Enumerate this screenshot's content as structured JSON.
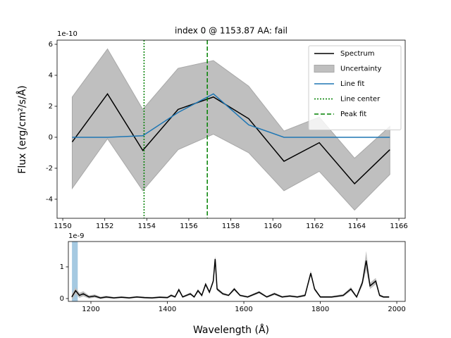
{
  "chart_data": [
    {
      "type": "line",
      "title": "index 0 @ 1153.87 AA: fail",
      "offset_label": "1e-10",
      "ylabel": "Flux (erg/cm²/s/Å)",
      "x": [
        1150.45,
        1152.13,
        1153.81,
        1155.49,
        1157.17,
        1158.85,
        1160.53,
        1162.21,
        1163.89,
        1165.57
      ],
      "series": [
        {
          "name": "Spectrum",
          "color": "#000000",
          "values": [
            -0.3,
            2.8,
            -0.85,
            1.8,
            2.6,
            1.2,
            -1.55,
            -0.35,
            -3.0,
            -0.8
          ]
        },
        {
          "name": "Uncertainty",
          "color": "#bfbfbf",
          "upper": [
            2.6,
            5.7,
            1.8,
            4.45,
            4.95,
            3.3,
            0.4,
            1.3,
            -1.35,
            0.7
          ],
          "lower": [
            -3.3,
            -0.1,
            -3.45,
            -0.8,
            0.2,
            -1.0,
            -3.45,
            -2.2,
            -4.7,
            -2.4
          ]
        },
        {
          "name": "Line fit",
          "color": "#1f77b4",
          "values": [
            0,
            0,
            0.1,
            1.6,
            2.8,
            0.8,
            0,
            0,
            0,
            0
          ]
        }
      ],
      "vlines": [
        {
          "name": "Line center",
          "x": 1153.87,
          "color": "#008000",
          "style": "dotted"
        },
        {
          "name": "Peak fit",
          "x": 1156.88,
          "color": "#008000",
          "style": "dashed"
        }
      ],
      "xlim": [
        1149.73,
        1166.3
      ],
      "ylim": [
        -5.23,
        6.27
      ],
      "xticks": [
        1150,
        1152,
        1154,
        1156,
        1158,
        1160,
        1162,
        1164,
        1166
      ],
      "yticks": [
        -4,
        -2,
        0,
        2,
        4,
        6
      ],
      "legend": "upper right"
    },
    {
      "type": "line",
      "offset_label": "1e-9",
      "xlabel": "Wavelength (Å)",
      "x": [
        1150,
        1160,
        1170,
        1180,
        1195,
        1210,
        1225,
        1240,
        1260,
        1280,
        1300,
        1320,
        1340,
        1360,
        1380,
        1400,
        1410,
        1420,
        1430,
        1440,
        1460,
        1470,
        1480,
        1490,
        1500,
        1510,
        1520,
        1525,
        1530,
        1545,
        1560,
        1575,
        1590,
        1610,
        1640,
        1660,
        1680,
        1700,
        1720,
        1740,
        1760,
        1775,
        1785,
        1800,
        1830,
        1860,
        1880,
        1895,
        1910,
        1920,
        1930,
        1945,
        1955,
        1965,
        1980
      ],
      "color": "#000000",
      "values": [
        0.05,
        0.25,
        0.1,
        0.15,
        0.05,
        0.08,
        0.02,
        0.05,
        0.02,
        0.04,
        0.02,
        0.05,
        0.03,
        0.02,
        0.04,
        0.03,
        0.1,
        0.05,
        0.28,
        0.05,
        0.15,
        0.05,
        0.25,
        0.1,
        0.45,
        0.2,
        0.55,
        1.25,
        0.3,
        0.15,
        0.1,
        0.3,
        0.1,
        0.05,
        0.2,
        0.05,
        0.15,
        0.05,
        0.08,
        0.05,
        0.1,
        0.8,
        0.3,
        0.05,
        0.05,
        0.1,
        0.3,
        0.05,
        0.5,
        1.2,
        0.4,
        0.55,
        0.1,
        0.05,
        0.05
      ],
      "err": [
        0.1,
        0.1,
        0.08,
        0.08,
        0.05,
        0.05,
        0.04,
        0.04,
        0.03,
        0.03,
        0.03,
        0.03,
        0.03,
        0.03,
        0.03,
        0.03,
        0.04,
        0.03,
        0.05,
        0.03,
        0.04,
        0.03,
        0.05,
        0.04,
        0.06,
        0.05,
        0.07,
        0.1,
        0.05,
        0.04,
        0.03,
        0.05,
        0.03,
        0.03,
        0.04,
        0.03,
        0.04,
        0.03,
        0.03,
        0.03,
        0.04,
        0.08,
        0.05,
        0.03,
        0.03,
        0.04,
        0.06,
        0.03,
        0.1,
        0.3,
        0.1,
        0.1,
        0.04,
        0.03,
        0.03
      ],
      "band_color": "#bfbfbf",
      "highlight": {
        "x": [
          1150.45,
          1165.57
        ],
        "color": "#1f77b4"
      },
      "xlim": [
        1141,
        2022
      ],
      "ylim": [
        -0.09,
        1.8
      ],
      "xticks": [
        1200,
        1400,
        1600,
        1800,
        2000
      ],
      "yticks": [
        0,
        1
      ]
    }
  ]
}
